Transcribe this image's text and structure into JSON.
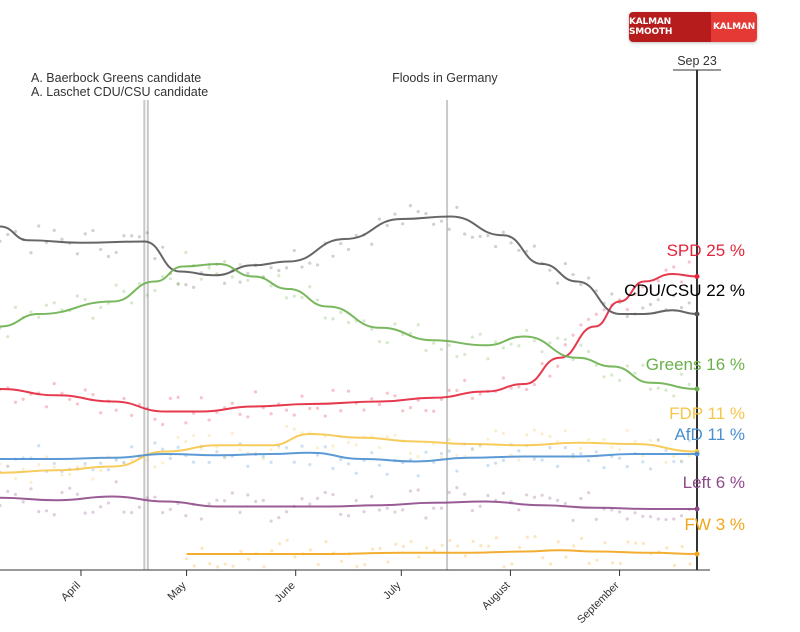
{
  "toggle": {
    "option_smooth": "KALMAN SMOOTH",
    "option_kalman": "KALMAN"
  },
  "colors": {
    "SPD": "#e3243b",
    "CDU/CSU": "#555555",
    "Greens": "#6ab04c",
    "FDP": "#f6c64a",
    "AfD": "#4a8fd1",
    "Left": "#8e4a8a",
    "FW": "#f2a51c"
  },
  "chart_data": {
    "type": "line",
    "title": "",
    "xlabel": "",
    "ylabel": "",
    "x_ticks": [
      "April",
      "May",
      "June",
      "July",
      "August",
      "September"
    ],
    "tick_dates": [
      "2021-04-01",
      "2021-05-01",
      "2021-06-01",
      "2021-07-01",
      "2021-08-01",
      "2021-09-01"
    ],
    "xlim": [
      "2021-03-09",
      "2021-09-23"
    ],
    "ylim": [
      0,
      30
    ],
    "grid": false,
    "current_marker": {
      "label": "Sep 23",
      "date": "2021-09-23"
    },
    "events": [
      {
        "date": "2021-04-19",
        "lines": [
          "A. Baerbock Greens candidate"
        ]
      },
      {
        "date": "2021-04-20",
        "lines": [
          "A. Laschet CDU/CSU candidate"
        ]
      },
      {
        "date": "2021-07-14",
        "lines": [
          "Floods in Germany"
        ]
      }
    ],
    "series": [
      {
        "name": "SPD",
        "display_value": "25 %",
        "x": [
          "2021-03-09",
          "2021-03-25",
          "2021-04-10",
          "2021-04-25",
          "2021-05-05",
          "2021-05-20",
          "2021-06-05",
          "2021-06-25",
          "2021-07-10",
          "2021-07-25",
          "2021-08-05",
          "2021-08-15",
          "2021-08-25",
          "2021-09-01",
          "2021-09-08",
          "2021-09-16",
          "2021-09-23"
        ],
        "y": [
          16.0,
          15.5,
          15.0,
          14.2,
          14.2,
          14.6,
          14.8,
          15.0,
          15.3,
          15.8,
          16.4,
          18.5,
          21.0,
          23.0,
          24.6,
          25.2,
          25.0
        ]
      },
      {
        "name": "CDU/CSU",
        "display_value": "22 %",
        "x": [
          "2021-03-09",
          "2021-03-17",
          "2021-04-01",
          "2021-04-19",
          "2021-04-29",
          "2021-05-09",
          "2021-05-20",
          "2021-05-30",
          "2021-06-15",
          "2021-07-01",
          "2021-07-15",
          "2021-07-30",
          "2021-08-10",
          "2021-08-20",
          "2021-09-01",
          "2021-09-08",
          "2021-09-16",
          "2021-09-23"
        ],
        "y": [
          29.0,
          27.9,
          27.7,
          27.8,
          25.4,
          25.1,
          25.9,
          26.2,
          28.0,
          29.6,
          29.8,
          28.3,
          26.0,
          24.6,
          22.0,
          22.0,
          22.3,
          22.0
        ]
      },
      {
        "name": "Greens",
        "display_value": "16 %",
        "x": [
          "2021-03-09",
          "2021-03-20",
          "2021-04-10",
          "2021-04-22",
          "2021-04-30",
          "2021-05-10",
          "2021-05-20",
          "2021-05-30",
          "2021-06-10",
          "2021-06-25",
          "2021-07-10",
          "2021-07-25",
          "2021-08-05",
          "2021-08-20",
          "2021-08-30",
          "2021-09-10",
          "2021-09-23"
        ],
        "y": [
          21.0,
          22.0,
          23.0,
          24.6,
          25.8,
          26.0,
          25.0,
          24.0,
          22.6,
          20.9,
          19.9,
          19.5,
          20.2,
          18.5,
          17.8,
          16.5,
          16.0
        ]
      },
      {
        "name": "FDP",
        "display_value": "11 %",
        "x": [
          "2021-03-09",
          "2021-03-25",
          "2021-04-10",
          "2021-04-25",
          "2021-05-10",
          "2021-05-25",
          "2021-06-05",
          "2021-06-20",
          "2021-07-05",
          "2021-07-20",
          "2021-08-05",
          "2021-08-20",
          "2021-09-05",
          "2021-09-23"
        ],
        "y": [
          9.3,
          9.5,
          9.8,
          11.0,
          11.5,
          11.5,
          12.4,
          12.1,
          11.8,
          11.6,
          11.5,
          11.7,
          11.6,
          11.0
        ]
      },
      {
        "name": "AfD",
        "display_value": "11 %",
        "x": [
          "2021-03-09",
          "2021-03-25",
          "2021-04-10",
          "2021-04-25",
          "2021-05-10",
          "2021-05-25",
          "2021-06-05",
          "2021-06-20",
          "2021-07-05",
          "2021-07-20",
          "2021-08-05",
          "2021-08-20",
          "2021-09-05",
          "2021-09-23"
        ],
        "y": [
          10.4,
          10.4,
          10.5,
          10.8,
          10.7,
          10.8,
          10.9,
          10.4,
          10.2,
          10.5,
          10.6,
          10.6,
          10.8,
          10.8
        ]
      },
      {
        "name": "Left",
        "display_value": "6 %",
        "x": [
          "2021-03-09",
          "2021-03-25",
          "2021-04-10",
          "2021-04-25",
          "2021-05-10",
          "2021-05-25",
          "2021-06-10",
          "2021-06-25",
          "2021-07-10",
          "2021-07-25",
          "2021-08-10",
          "2021-08-25",
          "2021-09-10",
          "2021-09-23"
        ],
        "y": [
          7.3,
          7.1,
          7.4,
          7.0,
          6.6,
          6.6,
          6.6,
          6.7,
          6.9,
          7.0,
          6.7,
          6.5,
          6.4,
          6.4
        ]
      },
      {
        "name": "FW",
        "display_value": "3 %",
        "x": [
          "2021-05-01",
          "2021-05-20",
          "2021-06-10",
          "2021-07-01",
          "2021-07-20",
          "2021-08-05",
          "2021-08-15",
          "2021-08-25",
          "2021-09-10",
          "2021-09-23"
        ],
        "y": [
          2.8,
          2.8,
          2.8,
          2.9,
          2.9,
          3.0,
          3.1,
          3.0,
          2.9,
          2.8
        ]
      }
    ]
  }
}
